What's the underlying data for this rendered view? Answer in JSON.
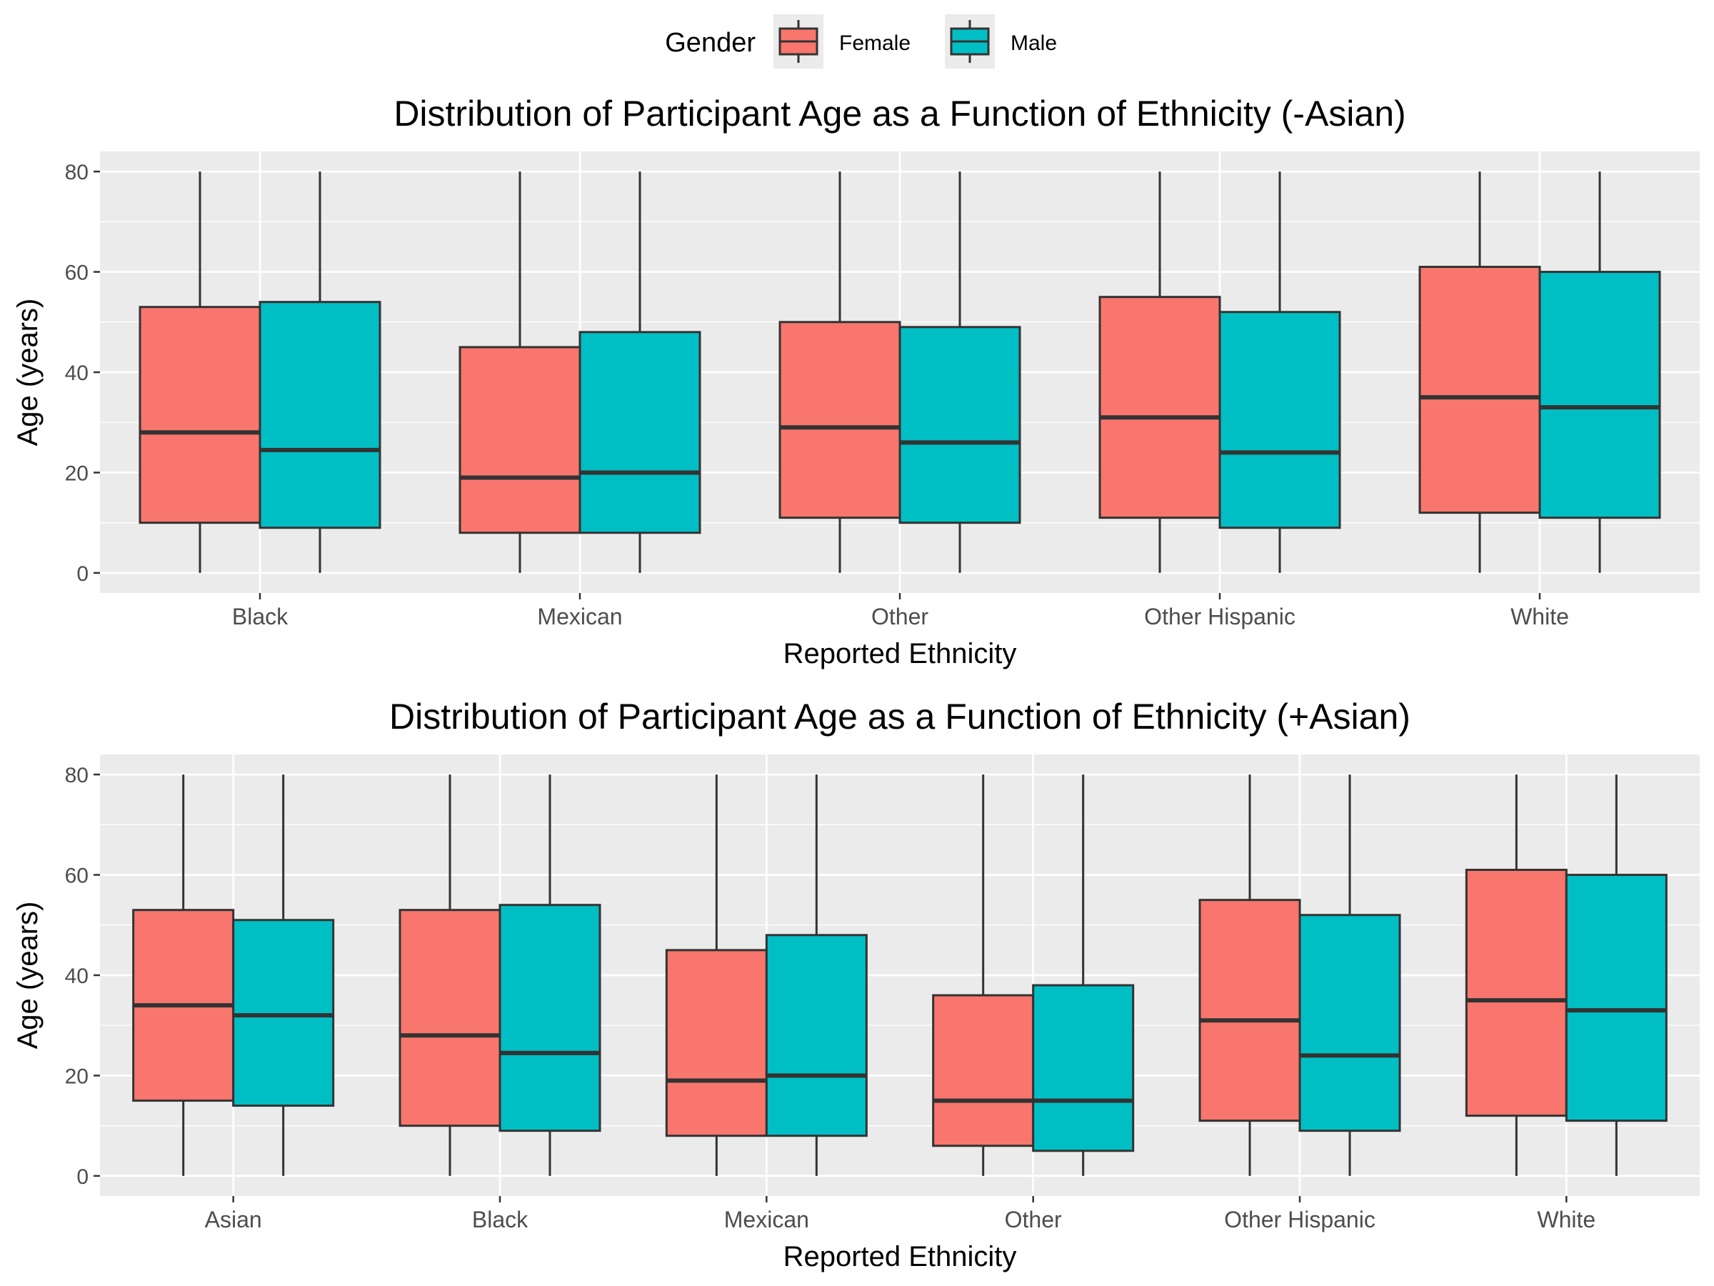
{
  "legend": {
    "title": "Gender",
    "items": [
      {
        "label": "Female",
        "color": "#F8766D"
      },
      {
        "label": "Male",
        "color": "#00BFC4"
      }
    ]
  },
  "chart_data": [
    {
      "type": "box",
      "title": "Distribution of Participant Age as a Function of Ethnicity (-Asian)",
      "xlabel": "Reported Ethnicity",
      "ylabel": "Age (years)",
      "ylim": [
        -4,
        84
      ],
      "yticks": [
        0,
        20,
        40,
        60,
        80
      ],
      "categories": [
        "Black",
        "Mexican",
        "Other",
        "Other Hispanic",
        "White"
      ],
      "series": [
        {
          "name": "Female",
          "color": "#F8766D",
          "boxes": [
            {
              "min": 0,
              "q1": 10,
              "median": 28,
              "q3": 53,
              "max": 80
            },
            {
              "min": 0,
              "q1": 8,
              "median": 19,
              "q3": 45,
              "max": 80
            },
            {
              "min": 0,
              "q1": 11,
              "median": 29,
              "q3": 50,
              "max": 80
            },
            {
              "min": 0,
              "q1": 11,
              "median": 31,
              "q3": 55,
              "max": 80
            },
            {
              "min": 0,
              "q1": 12,
              "median": 35,
              "q3": 61,
              "max": 80
            }
          ]
        },
        {
          "name": "Male",
          "color": "#00BFC4",
          "boxes": [
            {
              "min": 0,
              "q1": 9,
              "median": 24.5,
              "q3": 54,
              "max": 80
            },
            {
              "min": 0,
              "q1": 8,
              "median": 20,
              "q3": 48,
              "max": 80
            },
            {
              "min": 0,
              "q1": 10,
              "median": 26,
              "q3": 49,
              "max": 80
            },
            {
              "min": 0,
              "q1": 9,
              "median": 24,
              "q3": 52,
              "max": 80
            },
            {
              "min": 0,
              "q1": 11,
              "median": 33,
              "q3": 60,
              "max": 80
            }
          ]
        }
      ],
      "grid": true,
      "legend_position": "top"
    },
    {
      "type": "box",
      "title": "Distribution of Participant Age as a Function of Ethnicity (+Asian)",
      "xlabel": "Reported Ethnicity",
      "ylabel": "Age (years)",
      "ylim": [
        -4,
        84
      ],
      "yticks": [
        0,
        20,
        40,
        60,
        80
      ],
      "categories": [
        "Asian",
        "Black",
        "Mexican",
        "Other",
        "Other Hispanic",
        "White"
      ],
      "series": [
        {
          "name": "Female",
          "color": "#F8766D",
          "boxes": [
            {
              "min": 0,
              "q1": 15,
              "median": 34,
              "q3": 53,
              "max": 80
            },
            {
              "min": 0,
              "q1": 10,
              "median": 28,
              "q3": 53,
              "max": 80
            },
            {
              "min": 0,
              "q1": 8,
              "median": 19,
              "q3": 45,
              "max": 80
            },
            {
              "min": 0,
              "q1": 6,
              "median": 15,
              "q3": 36,
              "max": 80
            },
            {
              "min": 0,
              "q1": 11,
              "median": 31,
              "q3": 55,
              "max": 80
            },
            {
              "min": 0,
              "q1": 12,
              "median": 35,
              "q3": 61,
              "max": 80
            }
          ]
        },
        {
          "name": "Male",
          "color": "#00BFC4",
          "boxes": [
            {
              "min": 0,
              "q1": 14,
              "median": 32,
              "q3": 51,
              "max": 80
            },
            {
              "min": 0,
              "q1": 9,
              "median": 24.5,
              "q3": 54,
              "max": 80
            },
            {
              "min": 0,
              "q1": 8,
              "median": 20,
              "q3": 48,
              "max": 80
            },
            {
              "min": 0,
              "q1": 5,
              "median": 15,
              "q3": 38,
              "max": 80
            },
            {
              "min": 0,
              "q1": 9,
              "median": 24,
              "q3": 52,
              "max": 80
            },
            {
              "min": 0,
              "q1": 11,
              "median": 33,
              "q3": 60,
              "max": 80
            }
          ]
        }
      ],
      "grid": true,
      "legend_position": "top"
    }
  ]
}
